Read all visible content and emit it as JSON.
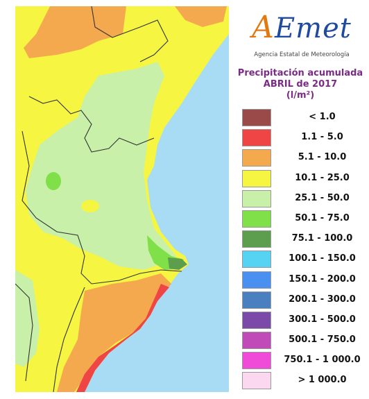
{
  "logo": {
    "text_a": "A",
    "text_rest": "Emet",
    "subtitle": "Agencia Estatal de Meteorología"
  },
  "title": {
    "line1": "Precipitación acumulada",
    "line2": "ABRIL de 2017",
    "unit": "(l/m²)"
  },
  "legend": [
    {
      "label": "< 1.0",
      "color": "#9b4a4a"
    },
    {
      "label": "1.1 - 5.0",
      "color": "#f04545"
    },
    {
      "label": "5.1 - 10.0",
      "color": "#f5a94e"
    },
    {
      "label": "10.1 - 25.0",
      "color": "#f5f542"
    },
    {
      "label": "25.1 - 50.0",
      "color": "#c8f0a8"
    },
    {
      "label": "50.1 - 75.0",
      "color": "#7fe04a"
    },
    {
      "label": "75.1 - 100.0",
      "color": "#5c9e4e"
    },
    {
      "label": "100.1 - 150.0",
      "color": "#56d3f2"
    },
    {
      "label": "150.1 - 200.0",
      "color": "#4a90f0"
    },
    {
      "label": "200.1 - 300.0",
      "color": "#4a7fc0"
    },
    {
      "label": "300.1 - 500.0",
      "color": "#7b4aa8"
    },
    {
      "label": "500.1 - 750.0",
      "color": "#c04ab8"
    },
    {
      "label": "750.1 - 1 000.0",
      "color": "#f04ad8"
    },
    {
      "label": "> 1 000.0",
      "color": "#fcd8f0"
    }
  ],
  "map": {
    "sea_color": "#a8dcf5",
    "land_default_color": "#f5f542"
  }
}
